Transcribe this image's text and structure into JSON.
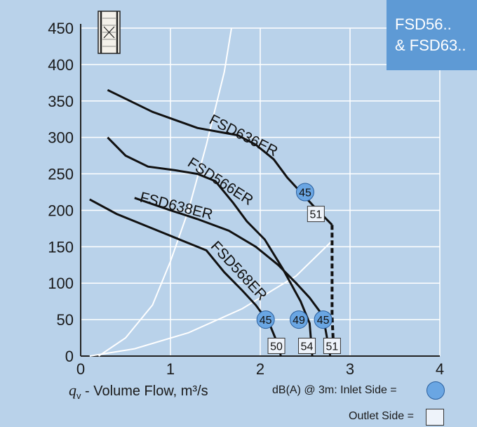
{
  "badge_text": "FSD56..\n& FSD63..",
  "xlabel": {
    "q": "q",
    "sub": "v",
    "rest": " - Volume Flow, m³/s"
  },
  "legend": {
    "inlet_label": "dB(A) @ 3m: Inlet Side  =",
    "outlet_label": "Outlet Side ="
  },
  "icon": "fan-unit-icon",
  "colors": {
    "background": "#b9d2ea",
    "badge": "#5e9ad5",
    "inlet_marker": "#6aa6e3",
    "outlet_marker": "#eef3fa",
    "curve": "#111111",
    "system_line": "#ffffff"
  },
  "chart_data": {
    "type": "line",
    "xlim": [
      0,
      4
    ],
    "ylim": [
      0,
      450
    ],
    "xticks": [
      0,
      1,
      2,
      3,
      4
    ],
    "yticks": [
      0,
      50,
      100,
      150,
      200,
      250,
      300,
      350,
      400,
      450
    ],
    "grid": true,
    "series": [
      {
        "name": "FSD636ER",
        "points": [
          [
            0.3,
            365
          ],
          [
            0.8,
            335
          ],
          [
            1.3,
            313
          ],
          [
            1.75,
            303
          ],
          [
            1.95,
            290
          ],
          [
            2.15,
            270
          ],
          [
            2.3,
            245
          ],
          [
            2.45,
            225
          ],
          [
            2.6,
            205
          ],
          [
            2.8,
            180
          ],
          [
            2.8,
            55
          ],
          [
            2.82,
            0
          ]
        ]
      },
      {
        "name": "FSD566ER",
        "points": [
          [
            0.3,
            300
          ],
          [
            0.5,
            275
          ],
          [
            0.75,
            260
          ],
          [
            1.05,
            255
          ],
          [
            1.3,
            250
          ],
          [
            1.5,
            240
          ],
          [
            1.7,
            210
          ],
          [
            1.85,
            185
          ],
          [
            2.05,
            160
          ],
          [
            2.25,
            120
          ],
          [
            2.45,
            75
          ],
          [
            2.55,
            45
          ],
          [
            2.58,
            0
          ]
        ]
      },
      {
        "name": "FSD638ER",
        "points": [
          [
            0.6,
            217
          ],
          [
            1.0,
            200
          ],
          [
            1.3,
            188
          ],
          [
            1.65,
            172
          ],
          [
            1.95,
            150
          ],
          [
            2.2,
            125
          ],
          [
            2.4,
            100
          ],
          [
            2.55,
            80
          ],
          [
            2.7,
            55
          ],
          [
            2.78,
            0
          ]
        ]
      },
      {
        "name": "FSD568ER",
        "points": [
          [
            0.1,
            215
          ],
          [
            0.4,
            195
          ],
          [
            0.8,
            175
          ],
          [
            1.1,
            160
          ],
          [
            1.4,
            145
          ],
          [
            1.6,
            115
          ],
          [
            1.8,
            90
          ],
          [
            1.95,
            70
          ],
          [
            2.1,
            45
          ],
          [
            2.2,
            15
          ],
          [
            2.23,
            0
          ]
        ]
      }
    ],
    "system_curves": [
      {
        "points": [
          [
            0.2,
            0
          ],
          [
            0.5,
            25
          ],
          [
            0.8,
            70
          ],
          [
            1.0,
            130
          ],
          [
            1.2,
            200
          ],
          [
            1.4,
            290
          ],
          [
            1.6,
            390
          ],
          [
            1.68,
            450
          ]
        ]
      },
      {
        "points": [
          [
            0.1,
            0
          ],
          [
            0.6,
            10
          ],
          [
            1.2,
            32
          ],
          [
            1.8,
            65
          ],
          [
            2.4,
            110
          ],
          [
            2.8,
            158
          ]
        ]
      }
    ],
    "inlet_db_markers": [
      {
        "x": 2.5,
        "y": 225,
        "label": "45"
      },
      {
        "x": 2.06,
        "y": 50,
        "label": "45"
      },
      {
        "x": 2.43,
        "y": 50,
        "label": "49"
      },
      {
        "x": 2.7,
        "y": 50,
        "label": "45"
      }
    ],
    "outlet_db_markers": [
      {
        "x": 2.62,
        "y": 195,
        "label": "51"
      },
      {
        "x": 2.18,
        "y": 14,
        "label": "50"
      },
      {
        "x": 2.52,
        "y": 14,
        "label": "54"
      },
      {
        "x": 2.8,
        "y": 14,
        "label": "51"
      }
    ]
  }
}
